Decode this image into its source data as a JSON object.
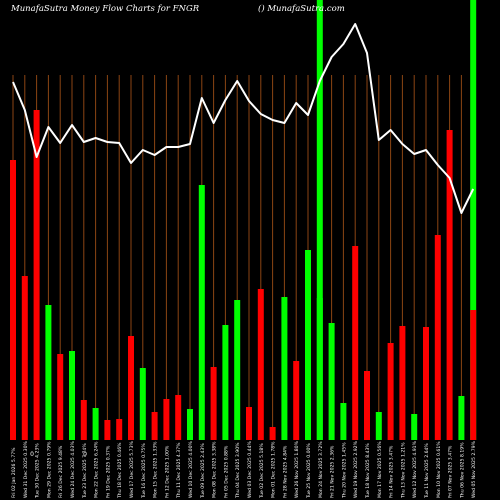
{
  "header": {
    "title": "MunafaSutra  Money Flow  Charts for FNGR",
    "site": "() MunafaSutra.com"
  },
  "colors": {
    "background": "#000000",
    "up": "#00ff00",
    "down": "#ff0000",
    "separator": "#8b4513",
    "line": "#ffffff"
  },
  "chart_data": {
    "type": "bar",
    "title": "MunafaSutra  Money Flow  Charts for FNGR",
    "categories": [
      "Fri 02 Jan 2026 5.77%",
      "Wed 31 Dec 2025 0.30%",
      "Tue 30 Dec 2025 4.23%",
      "Mon 29 Dec 2025 0.79%",
      "Fri 26 Dec 2025 9.48%",
      "Wed 24 Dec 2025 4.03%",
      "Tue 23 Dec 2025 7.74%",
      "Mon 22 Dec 2025 6.24%",
      "Fri 19 Dec 2025 0.37%",
      "Thu 18 Dec 2025 0.46%",
      "Wed 17 Dec 2025 5.73%",
      "Tue 16 Dec 2025 0.75%",
      "Mon 15 Dec 2025 1.33%",
      "Fri 12 Dec 2025 1.00%",
      "Thu 11 Dec 2025 4.37%",
      "Wed 10 Dec 2025 4.00%",
      "Tue 09 Dec 2025 2.43%",
      "Mon 08 Dec 2025 3.38%",
      "Fri 05 Dec 2025 0.88%",
      "Thu 04 Dec 2025 3.90%",
      "Wed 03 Dec 2025 0.44%",
      "Tue 02 Dec 2025 5.18%",
      "Mon 01 Dec 2025 1.78%",
      "Fri 28 Nov 2025 4.84%",
      "Wed 26 Nov 2025 1.80%",
      "Tue 25 Nov 2025 0.00%",
      "Mon 24 Nov 2025 3.72%",
      "Fri 21 Nov 2025 2.36%",
      "Thu 20 Nov 2025 1.45%",
      "Wed 19 Nov 2025 2.92%",
      "Tue 18 Nov 2025 8.43%",
      "Mon 17 Nov 2025 0.56%",
      "Fri 14 Nov 2025 3.47%",
      "Thu 13 Nov 2025 1.21%",
      "Wed 12 Nov 2025 4.91%",
      "Tue 11 Nov 2025 2.64%",
      "Mon 10 Nov 2025 0.61%",
      "Fri 07 Nov 2025 3.47%",
      "Thu 06 Nov 2025 8.19%",
      "Wed 05 Nov 2025 2.79%"
    ],
    "footer_labels": [
      "0",
      "0"
    ],
    "series": [
      {
        "type": "bar",
        "values": [
          280,
          164,
          330,
          135,
          86,
          89,
          40,
          32,
          20,
          21,
          104,
          72,
          28,
          41,
          45,
          31,
          255,
          73,
          115,
          140,
          33,
          151,
          13,
          143,
          79,
          190,
          142,
          117,
          37,
          194,
          69,
          28,
          97,
          114,
          26,
          113,
          205,
          310,
          44,
          130
        ],
        "colors": [
          "red",
          "red",
          "red",
          "green",
          "red",
          "green",
          "red",
          "green",
          "red",
          "red",
          "red",
          "green",
          "red",
          "red",
          "red",
          "green",
          "green",
          "red",
          "green",
          "green",
          "red",
          "red",
          "red",
          "green",
          "red",
          "green",
          "green",
          "green",
          "green",
          "red",
          "red",
          "green",
          "red",
          "red",
          "green",
          "red",
          "red",
          "red",
          "green",
          "red"
        ]
      },
      {
        "type": "line",
        "values": [
          358,
          330,
          283,
          313,
          297,
          315,
          298,
          302,
          298,
          297,
          277,
          290,
          285,
          293,
          293,
          296,
          342,
          317,
          340,
          359,
          339,
          326,
          320,
          317,
          337,
          325,
          359,
          383,
          396,
          416,
          387,
          300,
          310,
          296,
          286,
          290,
          275,
          262,
          227,
          251
        ]
      }
    ],
    "ylim": [
      0,
      440
    ],
    "highlight_columns": [
      26,
      39
    ],
    "grid": true
  }
}
